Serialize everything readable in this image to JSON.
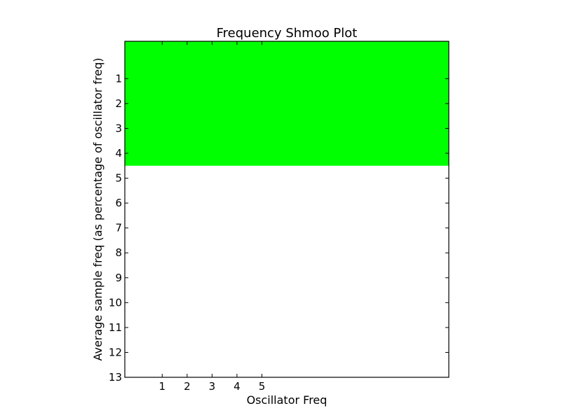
{
  "chart_data": {
    "type": "heatmap",
    "title": "Frequency Shmoo Plot",
    "xlabel": "Oscillator Freq",
    "ylabel": "Average sample freq (as percentage of oscillator freq)",
    "xlim": [
      -0.5,
      12.5
    ],
    "ylim": [
      13,
      -0.5
    ],
    "x_ticks": [
      1,
      2,
      3,
      4,
      5
    ],
    "y_ticks": [
      1,
      2,
      3,
      4,
      5,
      6,
      7,
      8,
      9,
      10,
      11,
      12,
      13
    ],
    "pass_region": {
      "x": [
        -0.5,
        12.5
      ],
      "y": [
        -0.5,
        4.5
      ]
    },
    "colors": {
      "pass": "#00ff00",
      "background": "#ffffff"
    },
    "grid": false,
    "legend": "none"
  }
}
